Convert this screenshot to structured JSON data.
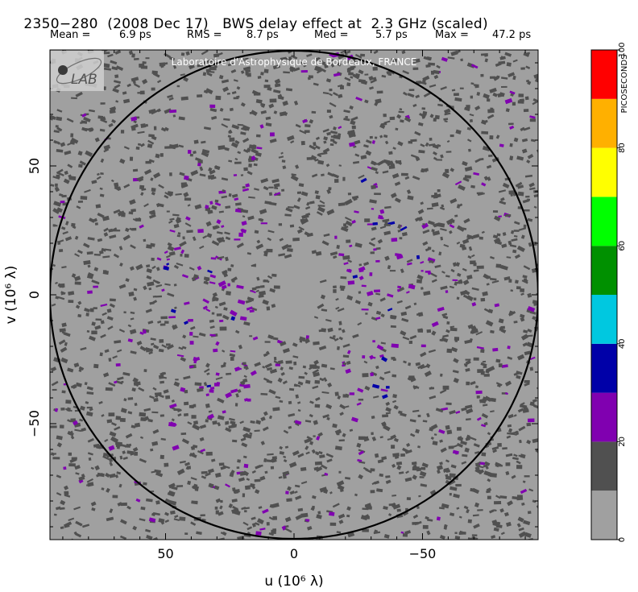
{
  "title": {
    "source": "2350−280",
    "date": "(2008 Dec 17)",
    "caption": "BWS delay effect at  2.3 GHz (scaled)"
  },
  "stats": [
    {
      "label": "Mean =",
      "value": "6.9 ps"
    },
    {
      "label": "RMS =",
      "value": "8.7 ps"
    },
    {
      "label": "Med =",
      "value": "5.7 ps"
    },
    {
      "label": "Max =",
      "value": "47.2 ps"
    }
  ],
  "credit": "Laboratoire d'Astrophysique de Bordeaux, FRANCE",
  "logo": {
    "text": "LAB",
    "sub": "B"
  },
  "chart_data": {
    "type": "heatmap",
    "xlabel": "u  (10⁶ λ)",
    "ylabel": "v  (10⁶ λ)",
    "xlim": [
      95,
      -95
    ],
    "ylim": [
      -95,
      95
    ],
    "x_ticks": [
      {
        "value": 50,
        "label": "50"
      },
      {
        "value": 0,
        "label": "0"
      },
      {
        "value": -50,
        "label": "−50"
      }
    ],
    "y_ticks": [
      {
        "value": 50,
        "label": "50"
      },
      {
        "value": 0,
        "label": "0"
      },
      {
        "value": -50,
        "label": "−50"
      }
    ],
    "circle_radius": 95,
    "colorbar": {
      "label": "PICOSECONDS",
      "ticks": [
        "0",
        "20",
        "40",
        "60",
        "80",
        "100"
      ],
      "levels": [
        {
          "from": 0,
          "to": 10,
          "color": "#a0a0a0"
        },
        {
          "from": 10,
          "to": 20,
          "color": "#505050"
        },
        {
          "from": 20,
          "to": 30,
          "color": "#8000b0"
        },
        {
          "from": 30,
          "to": 40,
          "color": "#0000a8"
        },
        {
          "from": 40,
          "to": 50,
          "color": "#00c8e0"
        },
        {
          "from": 50,
          "to": 60,
          "color": "#009000"
        },
        {
          "from": 60,
          "to": 70,
          "color": "#00ff00"
        },
        {
          "from": 70,
          "to": 80,
          "color": "#ffff00"
        },
        {
          "from": 80,
          "to": 90,
          "color": "#ffb000"
        },
        {
          "from": 90,
          "to": 100,
          "color": "#ff0000"
        }
      ]
    },
    "background_level_color": "#a0a0a0"
  }
}
